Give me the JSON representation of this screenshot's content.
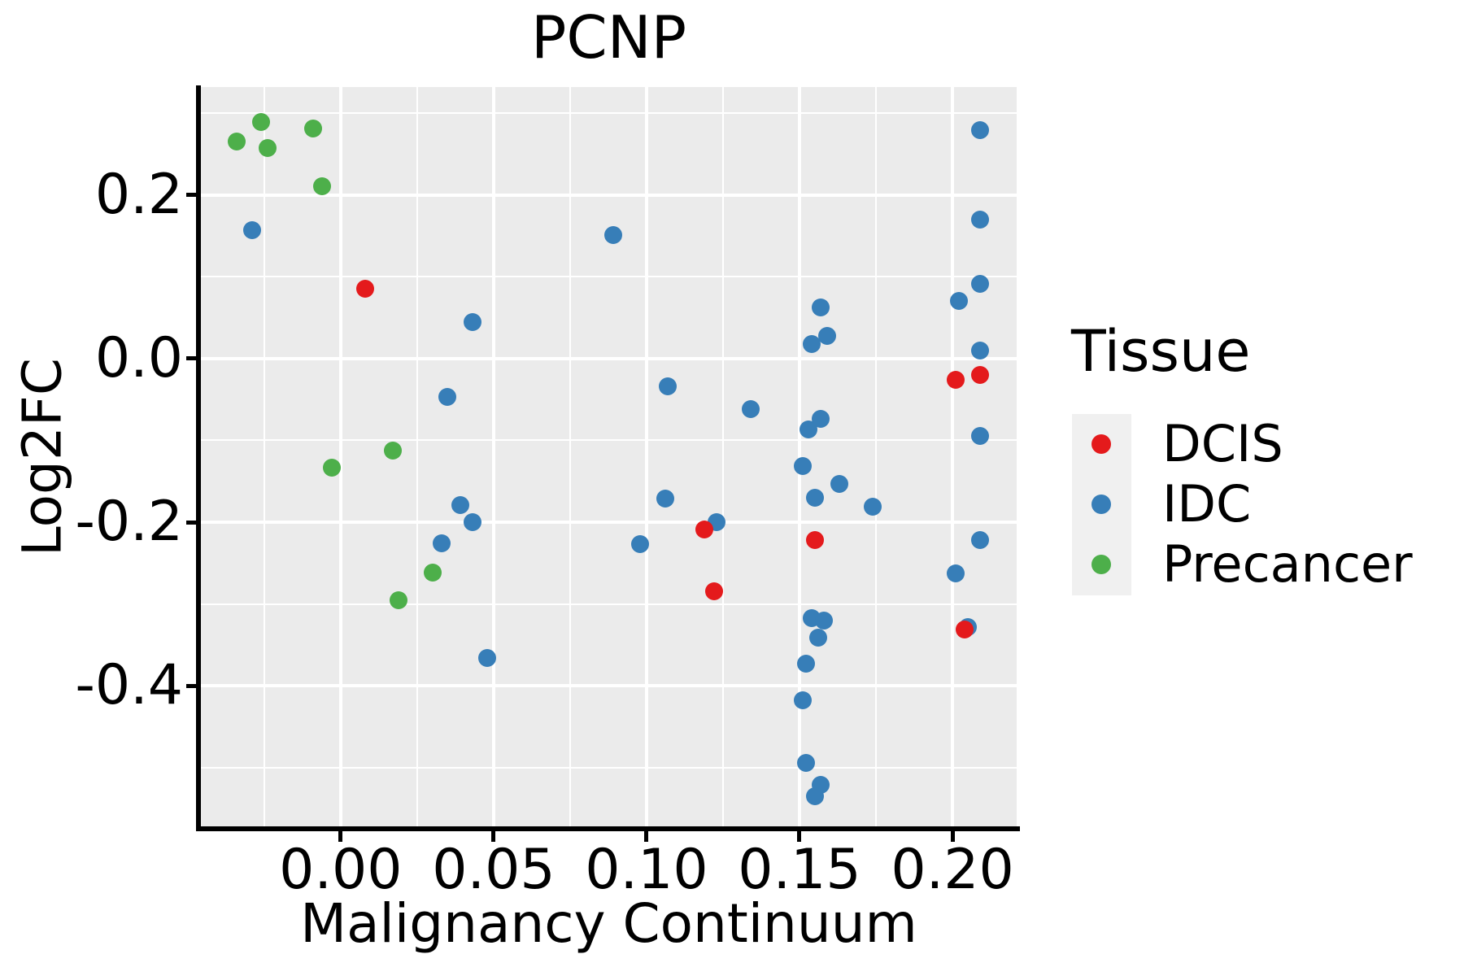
{
  "chart_data": {
    "type": "scatter",
    "title": "PCNP",
    "xlabel": "Malignancy Continuum",
    "ylabel": "Log2FC",
    "xlim": [
      -0.0457,
      0.221
    ],
    "ylim": [
      -0.5741,
      0.3323
    ],
    "grid": "on",
    "panel_bg": "#EBEBEB",
    "gridline_color": "#FFFFFF",
    "x_axis": {
      "major_ticks": [
        0.0,
        0.05,
        0.1,
        0.15,
        0.2
      ],
      "tick_labels": [
        "0.00",
        "0.05",
        "0.10",
        "0.15",
        "0.20"
      ],
      "minor_ticks": [
        -0.025,
        0.025,
        0.075,
        0.125,
        0.175
      ]
    },
    "y_axis": {
      "major_ticks": [
        0.2,
        0.0,
        -0.2,
        -0.4
      ],
      "tick_labels": [
        "0.2",
        "0.0",
        "-0.2",
        "-0.4"
      ],
      "minor_ticks": [
        0.3,
        0.1,
        -0.1,
        -0.3,
        -0.5
      ]
    },
    "series": [
      {
        "name": "IDC",
        "color": "#377EB8",
        "points": [
          [
            -0.029,
            0.157
          ],
          [
            0.089,
            0.151
          ],
          [
            0.209,
            0.28
          ],
          [
            0.209,
            0.17
          ],
          [
            0.209,
            0.092
          ],
          [
            0.202,
            0.071
          ],
          [
            0.043,
            0.045
          ],
          [
            0.157,
            0.063
          ],
          [
            0.159,
            0.028
          ],
          [
            0.154,
            0.018
          ],
          [
            0.209,
            0.01
          ],
          [
            0.107,
            -0.034
          ],
          [
            0.035,
            -0.047
          ],
          [
            0.134,
            -0.062
          ],
          [
            0.157,
            -0.074
          ],
          [
            0.153,
            -0.087
          ],
          [
            0.209,
            -0.095
          ],
          [
            0.151,
            -0.131
          ],
          [
            0.163,
            -0.153
          ],
          [
            0.106,
            -0.171
          ],
          [
            0.155,
            -0.17
          ],
          [
            0.039,
            -0.179
          ],
          [
            0.174,
            -0.181
          ],
          [
            0.043,
            -0.2
          ],
          [
            0.123,
            -0.2
          ],
          [
            0.033,
            -0.226
          ],
          [
            0.098,
            -0.227
          ],
          [
            0.209,
            -0.222
          ],
          [
            0.201,
            -0.263
          ],
          [
            0.154,
            -0.317
          ],
          [
            0.158,
            -0.32
          ],
          [
            0.156,
            -0.341
          ],
          [
            0.048,
            -0.366
          ],
          [
            0.152,
            -0.373
          ],
          [
            0.205,
            -0.328
          ],
          [
            0.151,
            -0.418
          ],
          [
            0.152,
            -0.495
          ],
          [
            0.157,
            -0.521
          ],
          [
            0.155,
            -0.535
          ]
        ]
      },
      {
        "name": "Precancer",
        "color": "#4DAF4A",
        "points": [
          [
            -0.034,
            0.266
          ],
          [
            -0.026,
            0.29
          ],
          [
            -0.024,
            0.258
          ],
          [
            -0.009,
            0.282
          ],
          [
            -0.006,
            0.211
          ],
          [
            -0.003,
            -0.133
          ],
          [
            0.017,
            -0.112
          ],
          [
            0.019,
            -0.296
          ],
          [
            0.03,
            -0.262
          ]
        ]
      },
      {
        "name": "DCIS",
        "color": "#E41A1C",
        "points": [
          [
            0.008,
            0.086
          ],
          [
            0.201,
            -0.026
          ],
          [
            0.209,
            -0.02
          ],
          [
            0.119,
            -0.209
          ],
          [
            0.155,
            -0.222
          ],
          [
            0.122,
            -0.285
          ],
          [
            0.204,
            -0.331
          ]
        ]
      }
    ],
    "legend_position": "right"
  },
  "legend": {
    "title": "Tissue",
    "entries": [
      {
        "label": "DCIS",
        "color": "#E41A1C"
      },
      {
        "label": "IDC",
        "color": "#377EB8"
      },
      {
        "label": "Precancer",
        "color": "#4DAF4A"
      }
    ]
  }
}
